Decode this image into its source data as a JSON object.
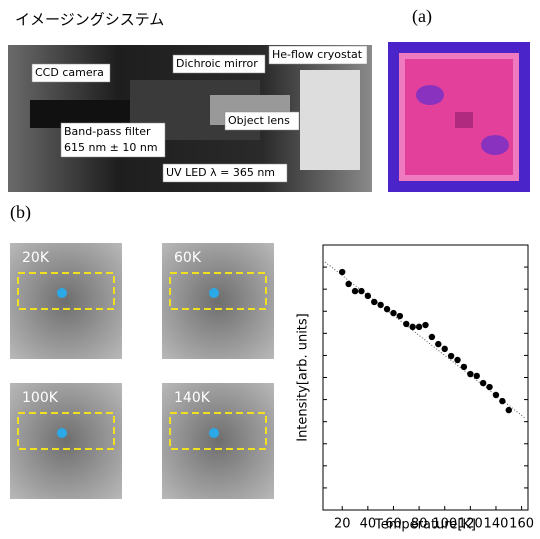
{
  "header": {
    "title": "イメージングシステム"
  },
  "panel_a": {
    "label": "(a)",
    "photo_labels": [
      "CCD camera",
      "Dichroic mirror",
      "He-flow cryostat",
      "Object lens",
      "Band-pass filter",
      "615 nm ± 10 nm",
      "UV LED  λ = 365 nm"
    ]
  },
  "panel_b": {
    "label": "(b)",
    "image_labels": [
      "20K",
      "60K",
      "100K",
      "140K"
    ]
  },
  "chart_data": {
    "type": "scatter",
    "x_label": "Temperature[K]",
    "y_label": "Intensity[arb. units]",
    "x": [
      20,
      25,
      30,
      35,
      40,
      45,
      50,
      55,
      60,
      65,
      70,
      75,
      80,
      85,
      90,
      95,
      100,
      105,
      110,
      115,
      120,
      125,
      130,
      135,
      140,
      145,
      150
    ],
    "values": [
      8.98,
      8.53,
      8.26,
      8.26,
      8.08,
      7.85,
      7.74,
      7.58,
      7.43,
      7.32,
      7.02,
      6.91,
      6.91,
      6.98,
      6.53,
      6.26,
      6.08,
      5.81,
      5.66,
      5.4,
      5.13,
      5.06,
      4.79,
      4.64,
      4.34,
      4.11,
      3.77
    ],
    "color": "#000000",
    "xlim": [
      5,
      165
    ],
    "xticks": [
      20,
      40,
      60,
      80,
      100,
      120,
      140,
      160
    ],
    "ylim": [
      0,
      10
    ]
  }
}
